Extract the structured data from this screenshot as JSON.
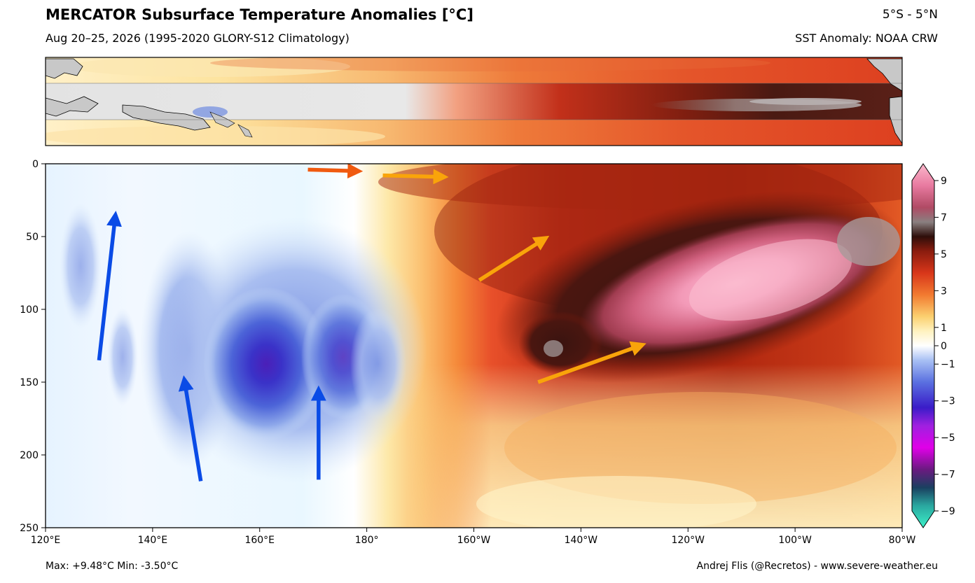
{
  "header": {
    "title": "MERCATOR Subsurface Temperature Anomalies [°C]",
    "subtitle": "Aug 20–25, 2026 (1995-2020 GLORY-S12 Climatology)",
    "region": "5°S - 5°N",
    "sst_source": "SST Anomaly: NOAA CRW"
  },
  "footer": {
    "stats": "Max: +9.48°C   Min: -3.50°C",
    "credit": "Andrej Flis (@Recretos) - www.severe-weather.eu"
  },
  "chart_data": {
    "type": "heatmap",
    "title": "MERCATOR Subsurface Temperature Anomalies [°C]",
    "x_axis": {
      "tick_labels": [
        "120°E",
        "140°E",
        "160°E",
        "180°",
        "160°W",
        "140°W",
        "120°W",
        "100°W",
        "80°W"
      ],
      "range_deg_east": [
        120,
        280
      ]
    },
    "y_axis": {
      "tick_labels": [
        "0",
        "50",
        "100",
        "150",
        "200",
        "250"
      ],
      "range_depth": [
        0,
        250
      ],
      "inverted": true
    },
    "colorbar": {
      "tick_labels": [
        "9",
        "7",
        "5",
        "3",
        "1",
        "0",
        "−1",
        "−3",
        "−5",
        "−7",
        "−9"
      ],
      "range": [
        -9,
        9
      ],
      "placement": "right"
    },
    "stats": {
      "max": 9.48,
      "min": -3.5
    },
    "features": [
      {
        "name": "cold anomaly core",
        "lon": 165,
        "depth": 135,
        "value": -3.5
      },
      {
        "name": "warm anomaly core",
        "lon": 250,
        "depth": 80,
        "value": 9.48
      }
    ],
    "arrows": [
      {
        "color": "#0a4be6",
        "from": [
          130,
          135
        ],
        "to": [
          133,
          37
        ]
      },
      {
        "color": "#0a4be6",
        "from": [
          149,
          218
        ],
        "to": [
          146,
          150
        ]
      },
      {
        "color": "#0a4be6",
        "from": [
          171,
          217
        ],
        "to": [
          171,
          157
        ]
      },
      {
        "color": "#f05a10",
        "from": [
          169,
          4
        ],
        "to": [
          178,
          5
        ]
      },
      {
        "color": "#f9a40a",
        "from": [
          183,
          8
        ],
        "to": [
          194,
          9
        ]
      },
      {
        "color": "#f9a40a",
        "from": [
          201,
          80
        ],
        "to": [
          213,
          52
        ]
      },
      {
        "color": "#f9a40a",
        "from": [
          212,
          150
        ],
        "to": [
          231,
          125
        ]
      }
    ]
  }
}
